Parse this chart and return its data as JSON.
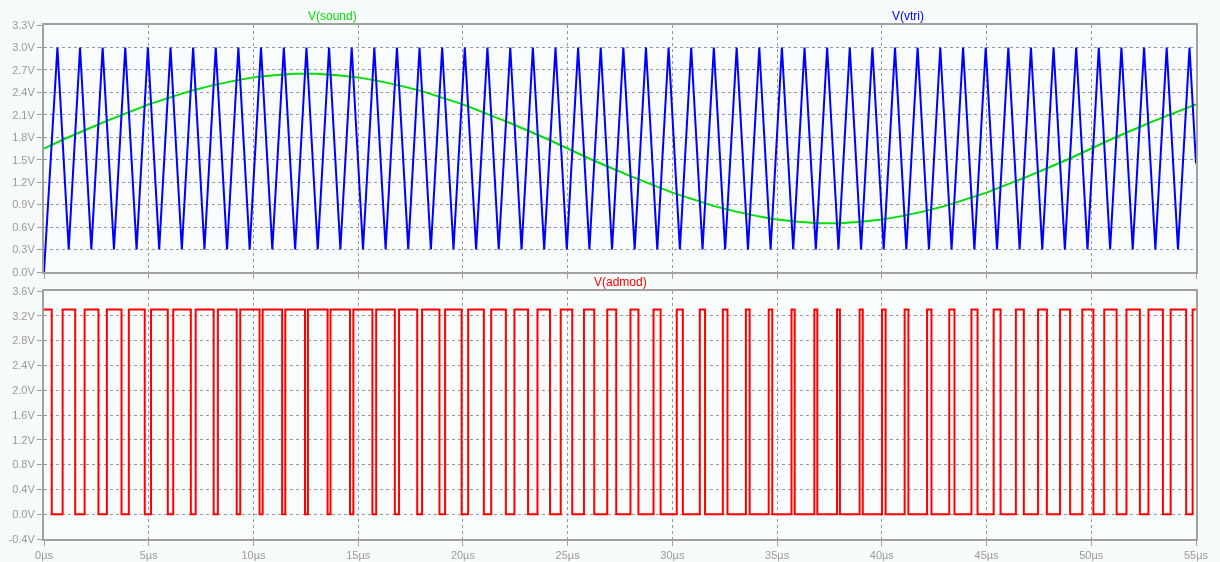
{
  "chart_data": [
    {
      "type": "line",
      "xlim": [
        0,
        55
      ],
      "xticks": [
        {
          "value": 0,
          "label": null
        },
        {
          "value": 5,
          "label": null
        },
        {
          "value": 10,
          "label": null
        },
        {
          "value": 15,
          "label": null
        },
        {
          "value": 20,
          "label": null
        },
        {
          "value": 25,
          "label": null
        },
        {
          "value": 30,
          "label": null
        },
        {
          "value": 35,
          "label": null
        },
        {
          "value": 40,
          "label": null
        },
        {
          "value": 45,
          "label": null
        },
        {
          "value": 50,
          "label": null
        },
        {
          "value": 55,
          "label": null
        }
      ],
      "ylim": [
        0,
        3.3
      ],
      "yticks": [
        {
          "value": 0,
          "label": "0.0V"
        },
        {
          "value": 0.3,
          "label": "0.3V"
        },
        {
          "value": 0.6,
          "label": "0.6V"
        },
        {
          "value": 0.9,
          "label": "0.9V"
        },
        {
          "value": 1.2,
          "label": "1.2V"
        },
        {
          "value": 1.5,
          "label": "1.5V"
        },
        {
          "value": 1.8,
          "label": "1.8V"
        },
        {
          "value": 2.1,
          "label": "2.1V"
        },
        {
          "value": 2.4,
          "label": "2.4V"
        },
        {
          "value": 2.7,
          "label": "2.7V"
        },
        {
          "value": 3.0,
          "label": "3.0V"
        },
        {
          "value": 3.3,
          "label": "3.3V"
        }
      ],
      "grid": true,
      "tick_labels": "y",
      "series": [
        {
          "name": "V(sound)",
          "color": "#00e000",
          "x": [
            0,
            1,
            2,
            3,
            4,
            5,
            6,
            7,
            8,
            9,
            10,
            11,
            12,
            13,
            14,
            15,
            16,
            17,
            18,
            19,
            20,
            21,
            22,
            23,
            24,
            25,
            26,
            27,
            28,
            29,
            30,
            31,
            32,
            33,
            34,
            35,
            36,
            37,
            38,
            39,
            40,
            41,
            42,
            43,
            44,
            45,
            46,
            47,
            48,
            49,
            50,
            51,
            52,
            53,
            54,
            55
          ],
          "values": [
            1.65,
            1.78,
            1.9,
            2.02,
            2.13,
            2.24,
            2.33,
            2.42,
            2.49,
            2.55,
            2.6,
            2.63,
            2.65,
            2.65,
            2.63,
            2.6,
            2.55,
            2.49,
            2.42,
            2.33,
            2.24,
            2.13,
            2.02,
            1.9,
            1.78,
            1.65,
            1.52,
            1.4,
            1.28,
            1.17,
            1.06,
            0.97,
            0.88,
            0.81,
            0.75,
            0.7,
            0.67,
            0.65,
            0.65,
            0.67,
            0.7,
            0.75,
            0.81,
            0.88,
            0.97,
            1.06,
            1.17,
            1.28,
            1.4,
            1.52,
            1.65,
            1.78,
            1.9,
            2.02,
            2.13,
            2.24
          ]
        },
        {
          "name": "V(vtri)",
          "color": "#0000ff",
          "x": [
            0,
            0.64,
            1.18,
            1.72,
            2.26,
            2.8,
            3.34,
            3.88,
            4.42,
            4.96,
            5.5,
            6.04,
            6.58,
            7.12,
            7.66,
            8.2,
            8.74,
            9.28,
            9.82,
            10.36,
            10.9,
            11.45,
            11.99,
            12.53,
            13.07,
            13.61,
            14.15,
            14.69,
            15.23,
            15.77,
            16.31,
            16.85,
            17.39,
            17.93,
            18.47,
            19.01,
            19.55,
            20.09,
            20.63,
            21.17,
            21.71,
            22.26,
            22.8,
            23.34,
            23.88,
            24.42,
            24.96,
            25.5,
            26.04,
            26.58,
            27.12,
            27.66,
            28.2,
            28.74,
            29.28,
            29.82,
            30.36,
            30.9,
            31.44,
            31.98,
            32.52,
            33.07,
            33.61,
            34.15,
            34.69,
            35.23,
            35.77,
            36.31,
            36.85,
            37.39,
            37.93,
            38.47,
            39.01,
            39.55,
            40.09,
            40.63,
            41.17,
            41.71,
            42.25,
            42.79,
            43.33,
            43.88,
            44.42,
            44.96,
            45.5,
            46.04,
            46.58,
            47.12,
            47.66,
            48.2,
            48.74,
            49.28,
            49.82,
            50.36,
            50.9,
            51.44,
            51.98,
            52.52,
            53.06,
            53.6,
            54.14,
            54.69,
            55
          ],
          "values": [
            0,
            3,
            0.3,
            3,
            0.3,
            3,
            0.3,
            3,
            0.3,
            3,
            0.3,
            3,
            0.3,
            3,
            0.3,
            3,
            0.3,
            3,
            0.3,
            3,
            0.3,
            3,
            0.3,
            3,
            0.3,
            3,
            0.3,
            3,
            0.3,
            3,
            0.3,
            3,
            0.3,
            3,
            0.3,
            3,
            0.3,
            3,
            0.3,
            3,
            0.3,
            3,
            0.3,
            3,
            0.3,
            3,
            0.3,
            3,
            0.3,
            3,
            0.3,
            3,
            0.3,
            3,
            0.3,
            3,
            0.3,
            3,
            0.3,
            3,
            0.3,
            3,
            0.3,
            3,
            0.3,
            3,
            0.3,
            3,
            0.3,
            3,
            0.3,
            3,
            0.3,
            3,
            0.3,
            3,
            0.3,
            3,
            0.3,
            3,
            0.3,
            3,
            0.3,
            3,
            0.3,
            3,
            0.3,
            3,
            0.3,
            3,
            0.3,
            3,
            0.3,
            3,
            0.3,
            3,
            0.3,
            3,
            0.3,
            3,
            0.3,
            3,
            1.45
          ]
        }
      ]
    },
    {
      "type": "step",
      "xlim": [
        0,
        55
      ],
      "xticks": [
        {
          "value": 0,
          "label": "0µs"
        },
        {
          "value": 5,
          "label": "5µs"
        },
        {
          "value": 10,
          "label": "10µs"
        },
        {
          "value": 15,
          "label": "15µs"
        },
        {
          "value": 20,
          "label": "20µs"
        },
        {
          "value": 25,
          "label": "25µs"
        },
        {
          "value": 30,
          "label": "30µs"
        },
        {
          "value": 35,
          "label": "35µs"
        },
        {
          "value": 40,
          "label": "40µs"
        },
        {
          "value": 45,
          "label": "45µs"
        },
        {
          "value": 50,
          "label": "50µs"
        },
        {
          "value": 55,
          "label": "55µs"
        }
      ],
      "ylim": [
        -0.4,
        3.6
      ],
      "yticks": [
        {
          "value": -0.4,
          "label": "-0.4V"
        },
        {
          "value": 0,
          "label": "0.0V"
        },
        {
          "value": 0.4,
          "label": "0.4V"
        },
        {
          "value": 0.8,
          "label": "0.8V"
        },
        {
          "value": 1.2,
          "label": "1.2V"
        },
        {
          "value": 1.6,
          "label": "1.6V"
        },
        {
          "value": 2.0,
          "label": "2.0V"
        },
        {
          "value": 2.4,
          "label": "2.4V"
        },
        {
          "value": 2.8,
          "label": "2.8V"
        },
        {
          "value": 3.2,
          "label": "3.2V"
        },
        {
          "value": 3.6,
          "label": "3.6V"
        }
      ],
      "grid": true,
      "series": [
        {
          "name": "V(admod)",
          "color": "#ff0000",
          "x": [
            0,
            0.37,
            0.89,
            1.49,
            1.94,
            2.6,
            3.0,
            3.7,
            4.05,
            4.81,
            5.11,
            5.91,
            6.17,
            7.01,
            7.24,
            8.1,
            8.3,
            9.2,
            9.37,
            10.29,
            10.44,
            11.37,
            11.52,
            12.46,
            12.6,
            13.54,
            13.68,
            14.61,
            14.77,
            15.68,
            15.86,
            16.75,
            16.95,
            17.82,
            18.05,
            18.88,
            19.15,
            19.94,
            20.25,
            21.0,
            21.35,
            22.05,
            22.46,
            23.11,
            23.56,
            24.16,
            24.67,
            25.22,
            25.78,
            26.27,
            26.89,
            27.32,
            28.0,
            28.38,
            29.1,
            29.44,
            30.21,
            30.5,
            31.31,
            31.56,
            32.41,
            32.63,
            33.51,
            33.69,
            34.6,
            34.77,
            35.69,
            35.84,
            36.78,
            36.92,
            37.86,
            38.0,
            38.94,
            39.09,
            40.01,
            40.18,
            41.09,
            41.27,
            42.16,
            42.37,
            43.22,
            43.47,
            44.28,
            44.57,
            45.34,
            45.67,
            46.4,
            46.78,
            47.46,
            47.88,
            48.51,
            48.99,
            49.57,
            50.1,
            50.62,
            51.21,
            51.68,
            52.32,
            52.73,
            53.42,
            53.79,
            54.53,
            54.84,
            55
          ],
          "values": [
            3.3,
            0,
            3.3,
            0,
            3.3,
            0,
            3.3,
            0,
            3.3,
            0,
            3.3,
            0,
            3.3,
            0,
            3.3,
            0,
            3.3,
            0,
            3.3,
            0,
            3.3,
            0,
            3.3,
            0,
            3.3,
            0,
            3.3,
            0,
            3.3,
            0,
            3.3,
            0,
            3.3,
            0,
            3.3,
            0,
            3.3,
            0,
            3.3,
            0,
            3.3,
            0,
            3.3,
            0,
            3.3,
            0,
            3.3,
            0,
            3.3,
            0,
            3.3,
            0,
            3.3,
            0,
            3.3,
            0,
            3.3,
            0,
            3.3,
            0,
            3.3,
            0,
            3.3,
            0,
            3.3,
            0,
            3.3,
            0,
            3.3,
            0,
            3.3,
            0,
            3.3,
            0,
            3.3,
            0,
            3.3,
            0,
            3.3,
            0,
            3.3,
            0,
            3.3,
            0,
            3.3,
            0,
            3.3,
            0,
            3.3,
            0,
            3.3,
            0,
            3.3,
            0,
            3.3,
            0,
            3.3,
            0,
            3.3,
            0,
            3.3,
            0,
            3.3,
            3.3
          ]
        }
      ]
    }
  ]
}
